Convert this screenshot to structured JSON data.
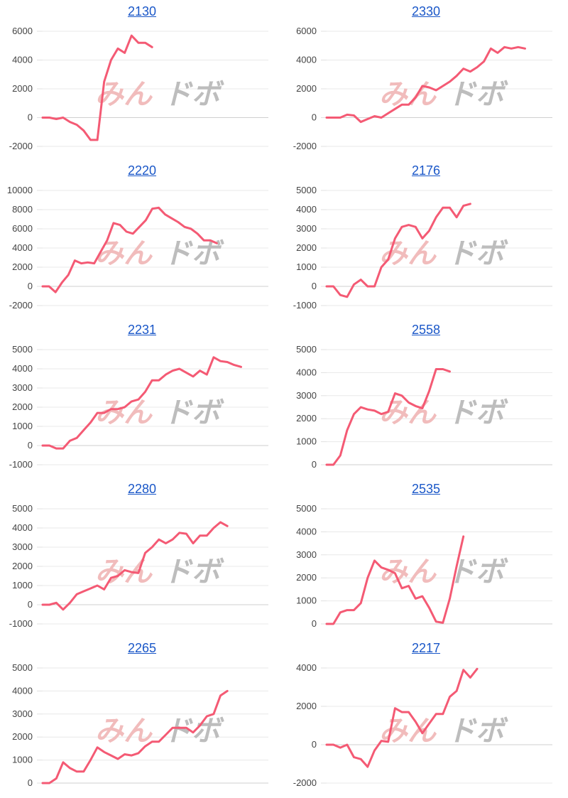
{
  "watermark": {
    "left": "みん",
    "right": "ドボ",
    "colors": [
      "#f1bcbc",
      "#bdbdbd"
    ]
  },
  "line_color": "#f45a74",
  "chart_data": [
    {
      "type": "line",
      "title": "2130",
      "ylim": [
        -2000,
        6000
      ],
      "yticks": [
        6000,
        4000,
        2000,
        0,
        -2000
      ],
      "n": 34,
      "values": [
        0,
        0,
        -100,
        0,
        -300,
        -500,
        -900,
        -1550,
        -1550,
        2500,
        4000,
        4800,
        4500,
        5700,
        5200,
        5200,
        4900
      ]
    },
    {
      "type": "line",
      "title": "2330",
      "ylim": [
        -2000,
        6000
      ],
      "yticks": [
        6000,
        4000,
        2000,
        0,
        -2000
      ],
      "n": 34,
      "values": [
        0,
        0,
        0,
        200,
        150,
        -300,
        -100,
        100,
        0,
        300,
        600,
        900,
        900,
        1400,
        2200,
        2100,
        1900,
        2200,
        2500,
        2900,
        3400,
        3200,
        3500,
        3900,
        4800,
        4500,
        4900,
        4800,
        4900,
        4800
      ]
    },
    {
      "type": "line",
      "title": "2220",
      "ylim": [
        -2000,
        10000
      ],
      "yticks": [
        10000,
        8000,
        6000,
        4000,
        2000,
        0,
        -2000
      ],
      "n": 36,
      "values": [
        0,
        0,
        -600,
        400,
        1200,
        2700,
        2400,
        2500,
        2400,
        3600,
        4800,
        6600,
        6400,
        5700,
        5500,
        6200,
        6900,
        8100,
        8200,
        7500,
        7100,
        6700,
        6200,
        6000,
        5500,
        4800,
        4800,
        4500
      ]
    },
    {
      "type": "line",
      "title": "2176",
      "ylim": [
        -1000,
        5000
      ],
      "yticks": [
        5000,
        4000,
        3000,
        2000,
        1000,
        0,
        -1000
      ],
      "n": 34,
      "values": [
        0,
        0,
        -450,
        -550,
        100,
        350,
        0,
        0,
        1000,
        1400,
        2500,
        3100,
        3200,
        3100,
        2500,
        2900,
        3600,
        4100,
        4100,
        3600,
        4200,
        4300
      ]
    },
    {
      "type": "line",
      "title": "2231",
      "ylim": [
        -1000,
        5000
      ],
      "yticks": [
        5000,
        4000,
        3000,
        2000,
        1000,
        0,
        -1000
      ],
      "n": 34,
      "values": [
        0,
        0,
        -150,
        -150,
        250,
        400,
        800,
        1200,
        1700,
        1700,
        1900,
        1900,
        2000,
        2300,
        2400,
        2800,
        3400,
        3400,
        3700,
        3900,
        4000,
        3800,
        3600,
        3900,
        3700,
        4600,
        4400,
        4350,
        4200,
        4100
      ]
    },
    {
      "type": "line",
      "title": "2558",
      "ylim": [
        0,
        5000
      ],
      "yticks": [
        5000,
        4000,
        3000,
        2000,
        1000,
        0
      ],
      "n": 34,
      "values": [
        0,
        0,
        400,
        1500,
        2200,
        2500,
        2400,
        2350,
        2200,
        2300,
        3100,
        3000,
        2700,
        2550,
        2450,
        3200,
        4150,
        4150,
        4050
      ]
    },
    {
      "type": "line",
      "title": "2280",
      "ylim": [
        -1000,
        5000
      ],
      "yticks": [
        5000,
        4000,
        3000,
        2000,
        1000,
        0,
        -1000
      ],
      "n": 34,
      "values": [
        0,
        0,
        100,
        -250,
        100,
        550,
        700,
        850,
        1000,
        800,
        1400,
        1500,
        1800,
        1700,
        1650,
        2700,
        3000,
        3400,
        3200,
        3400,
        3750,
        3700,
        3200,
        3600,
        3600,
        4000,
        4300,
        4100
      ]
    },
    {
      "type": "line",
      "title": "2535",
      "ylim": [
        0,
        5000
      ],
      "yticks": [
        5000,
        4000,
        3000,
        2000,
        1000,
        0
      ],
      "n": 34,
      "values": [
        0,
        0,
        500,
        600,
        600,
        900,
        2000,
        2750,
        2450,
        2350,
        2200,
        1550,
        1650,
        1100,
        1200,
        700,
        100,
        50,
        1100,
        2500,
        3800
      ]
    },
    {
      "type": "line",
      "title": "2265",
      "ylim": [
        0,
        5000
      ],
      "yticks": [
        5000,
        4000,
        3000,
        2000,
        1000,
        0
      ],
      "n": 34,
      "values": [
        0,
        0,
        200,
        900,
        650,
        500,
        500,
        1000,
        1550,
        1350,
        1200,
        1050,
        1250,
        1200,
        1300,
        1600,
        1800,
        1800,
        2100,
        2400,
        2400,
        2400,
        2200,
        2500,
        2900,
        3000,
        3800,
        4000
      ]
    },
    {
      "type": "line",
      "title": "2217",
      "ylim": [
        -2000,
        4000
      ],
      "yticks": [
        4000,
        2000,
        0,
        -2000
      ],
      "n": 34,
      "values": [
        0,
        0,
        -150,
        0,
        -650,
        -750,
        -1150,
        -300,
        200,
        150,
        1900,
        1700,
        1700,
        1200,
        600,
        1100,
        1600,
        1600,
        2500,
        2800,
        3900,
        3500,
        3950
      ]
    }
  ]
}
